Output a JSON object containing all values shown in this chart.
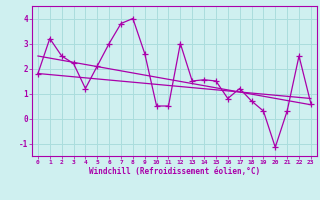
{
  "xlabel": "Windchill (Refroidissement éolien,°C)",
  "background_color": "#cff0f0",
  "grid_color": "#aadddd",
  "line_color": "#aa00aa",
  "x_data": [
    0,
    1,
    2,
    3,
    4,
    5,
    6,
    7,
    8,
    9,
    10,
    11,
    12,
    13,
    14,
    15,
    16,
    17,
    18,
    19,
    20,
    21,
    22,
    23
  ],
  "y_data": [
    1.8,
    3.2,
    2.5,
    2.2,
    1.2,
    2.1,
    3.0,
    3.8,
    4.0,
    2.6,
    0.5,
    0.5,
    3.0,
    1.5,
    1.55,
    1.5,
    0.8,
    1.2,
    0.7,
    0.3,
    -1.15,
    0.3,
    2.5,
    0.6
  ],
  "trend_x": [
    0,
    23
  ],
  "trend_y": [
    2.5,
    0.55
  ],
  "trend2_x": [
    0,
    23
  ],
  "trend2_y": [
    1.8,
    0.8
  ],
  "ylim": [
    -1.5,
    4.5
  ],
  "xlim": [
    -0.5,
    23.5
  ],
  "yticks": [
    -1,
    0,
    1,
    2,
    3,
    4
  ],
  "xticks": [
    0,
    1,
    2,
    3,
    4,
    5,
    6,
    7,
    8,
    9,
    10,
    11,
    12,
    13,
    14,
    15,
    16,
    17,
    18,
    19,
    20,
    21,
    22,
    23
  ]
}
